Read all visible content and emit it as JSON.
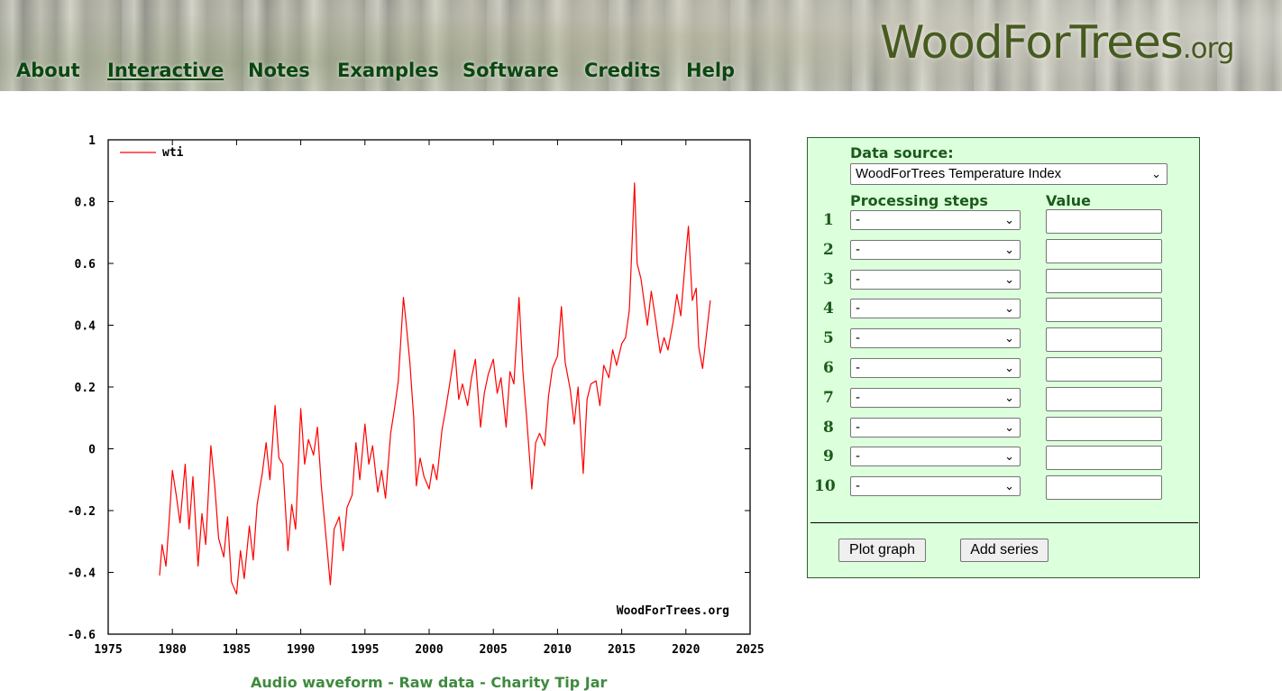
{
  "header": {
    "logo_main": "WoodForTrees",
    "logo_tld": ".org",
    "nav": [
      {
        "label": "About"
      },
      {
        "label": "Interactive"
      },
      {
        "label": "Notes"
      },
      {
        "label": "Examples"
      },
      {
        "label": "Software"
      },
      {
        "label": "Credits"
      },
      {
        "label": "Help"
      }
    ]
  },
  "chart_data": {
    "type": "line",
    "xlim": [
      1975,
      2025
    ],
    "ylim": [
      -0.6,
      1
    ],
    "xticks": [
      1975,
      1980,
      1985,
      1990,
      1995,
      2000,
      2005,
      2010,
      2015,
      2020,
      2025
    ],
    "yticks": [
      "1",
      "0.8",
      "0.6",
      "0.4",
      "0.2",
      "0",
      "-0.2",
      "-0.4",
      "-0.6"
    ],
    "ytick_values": [
      1,
      0.8,
      0.6,
      0.4,
      0.2,
      0,
      -0.2,
      -0.4,
      -0.6
    ],
    "legend": "wti",
    "legend_position": "top-left",
    "watermark": "WoodForTrees.org",
    "line_color": "#ff0000",
    "series": [
      {
        "name": "wti",
        "x": [
          1979.0,
          1979.2,
          1979.5,
          1979.8,
          1980.0,
          1980.3,
          1980.6,
          1981.0,
          1981.3,
          1981.6,
          1982.0,
          1982.3,
          1982.6,
          1983.0,
          1983.3,
          1983.6,
          1984.0,
          1984.3,
          1984.6,
          1985.0,
          1985.3,
          1985.6,
          1986.0,
          1986.3,
          1986.6,
          1987.0,
          1987.3,
          1987.6,
          1988.0,
          1988.3,
          1988.6,
          1989.0,
          1989.3,
          1989.6,
          1990.0,
          1990.3,
          1990.6,
          1991.0,
          1991.3,
          1991.6,
          1992.0,
          1992.3,
          1992.6,
          1993.0,
          1993.3,
          1993.6,
          1994.0,
          1994.3,
          1994.6,
          1995.0,
          1995.3,
          1995.6,
          1996.0,
          1996.3,
          1996.6,
          1997.0,
          1997.3,
          1997.6,
          1998.0,
          1998.2,
          1998.5,
          1998.8,
          1999.0,
          1999.3,
          1999.6,
          2000.0,
          2000.3,
          2000.6,
          2001.0,
          2001.3,
          2001.6,
          2002.0,
          2002.3,
          2002.6,
          2003.0,
          2003.3,
          2003.6,
          2004.0,
          2004.3,
          2004.6,
          2005.0,
          2005.3,
          2005.6,
          2006.0,
          2006.3,
          2006.6,
          2007.0,
          2007.3,
          2007.6,
          2008.0,
          2008.3,
          2008.6,
          2009.0,
          2009.3,
          2009.6,
          2010.0,
          2010.3,
          2010.6,
          2011.0,
          2011.3,
          2011.6,
          2012.0,
          2012.3,
          2012.6,
          2013.0,
          2013.3,
          2013.6,
          2014.0,
          2014.3,
          2014.6,
          2015.0,
          2015.3,
          2015.6,
          2016.0,
          2016.2,
          2016.5,
          2016.8,
          2017.0,
          2017.3,
          2017.6,
          2018.0,
          2018.3,
          2018.6,
          2019.0,
          2019.3,
          2019.6,
          2020.0,
          2020.2,
          2020.5,
          2020.8,
          2021.0,
          2021.3,
          2021.6,
          2021.9
        ],
        "y": [
          -0.41,
          -0.31,
          -0.38,
          -0.2,
          -0.07,
          -0.15,
          -0.24,
          -0.05,
          -0.26,
          -0.09,
          -0.38,
          -0.21,
          -0.31,
          0.01,
          -0.12,
          -0.29,
          -0.35,
          -0.22,
          -0.43,
          -0.47,
          -0.33,
          -0.42,
          -0.25,
          -0.36,
          -0.18,
          -0.08,
          0.02,
          -0.1,
          0.14,
          -0.03,
          -0.05,
          -0.33,
          -0.18,
          -0.26,
          0.13,
          -0.05,
          0.03,
          -0.02,
          0.07,
          -0.12,
          -0.3,
          -0.44,
          -0.26,
          -0.22,
          -0.33,
          -0.19,
          -0.15,
          0.02,
          -0.1,
          0.08,
          -0.05,
          0.01,
          -0.14,
          -0.07,
          -0.16,
          0.05,
          0.13,
          0.22,
          0.49,
          0.41,
          0.28,
          0.1,
          -0.12,
          -0.03,
          -0.09,
          -0.13,
          -0.05,
          -0.1,
          0.06,
          0.13,
          0.21,
          0.32,
          0.16,
          0.21,
          0.14,
          0.23,
          0.29,
          0.07,
          0.18,
          0.24,
          0.29,
          0.18,
          0.23,
          0.07,
          0.25,
          0.21,
          0.49,
          0.25,
          0.1,
          -0.13,
          0.02,
          0.05,
          0.01,
          0.17,
          0.26,
          0.3,
          0.46,
          0.28,
          0.19,
          0.08,
          0.2,
          -0.08,
          0.16,
          0.21,
          0.22,
          0.14,
          0.27,
          0.23,
          0.32,
          0.27,
          0.34,
          0.36,
          0.45,
          0.86,
          0.6,
          0.55,
          0.46,
          0.4,
          0.51,
          0.43,
          0.31,
          0.36,
          0.32,
          0.41,
          0.5,
          0.43,
          0.63,
          0.72,
          0.48,
          0.52,
          0.33,
          0.26,
          0.37,
          0.48
        ]
      }
    ]
  },
  "footer": {
    "audio": "Audio waveform",
    "sep1": " - ",
    "raw": "Raw data",
    "sep2": " - ",
    "tip": "Charity Tip Jar"
  },
  "form": {
    "data_source_label": "Data source:",
    "data_source_value": "WoodForTrees Temperature Index",
    "processing_label": "Processing steps",
    "value_label": "Value",
    "steps": [
      {
        "num": "1",
        "value": "-"
      },
      {
        "num": "2",
        "value": "-"
      },
      {
        "num": "3",
        "value": "-"
      },
      {
        "num": "4",
        "value": "-"
      },
      {
        "num": "5",
        "value": "-"
      },
      {
        "num": "6",
        "value": "-"
      },
      {
        "num": "7",
        "value": "-"
      },
      {
        "num": "8",
        "value": "-"
      },
      {
        "num": "9",
        "value": "-"
      },
      {
        "num": "10",
        "value": "-"
      }
    ],
    "plot_button": "Plot graph",
    "add_button": "Add series"
  }
}
